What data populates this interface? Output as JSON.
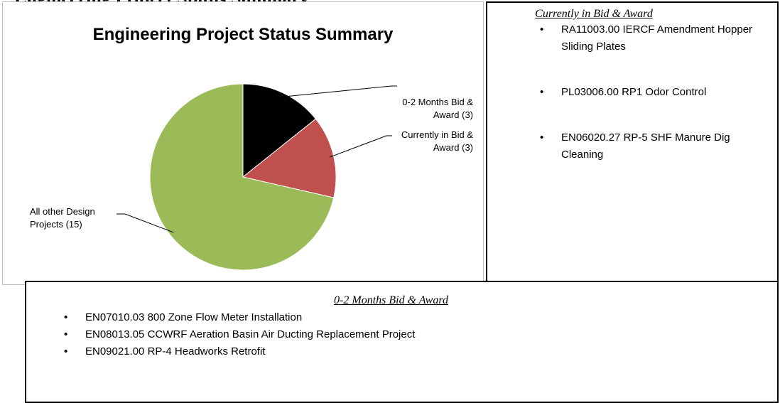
{
  "page_title": "Engineering Project Status Summary",
  "chart_data": {
    "type": "pie",
    "title": "Engineering Project Status Summary",
    "categories": [
      "0-2 Months Bid & Award",
      "Currently in Bid & Award",
      "All other Design Projects"
    ],
    "values": [
      3,
      3,
      15
    ],
    "value_labels": [
      "(3)",
      "(3)",
      "(15)"
    ],
    "colors": [
      "#000000",
      "#c0504d",
      "#9bbb59"
    ]
  },
  "bid_award_box": {
    "heading": "Currently in Bid & Award",
    "items": [
      "RA11003.00 IERCF Amendment Hopper Sliding Plates",
      "PL03006.00 RP1 Odor Control",
      "EN06020.27 RP-5 SHF Manure Dig Cleaning"
    ]
  },
  "months_box": {
    "heading": "0-2 Months Bid & Award",
    "items": [
      "EN07010.03 800 Zone Flow Meter Installation",
      "EN08013.05 CCWRF Aeration Basin Air Ducting Replacement Project",
      "EN09021.00 RP-4 Headworks Retrofit"
    ]
  }
}
